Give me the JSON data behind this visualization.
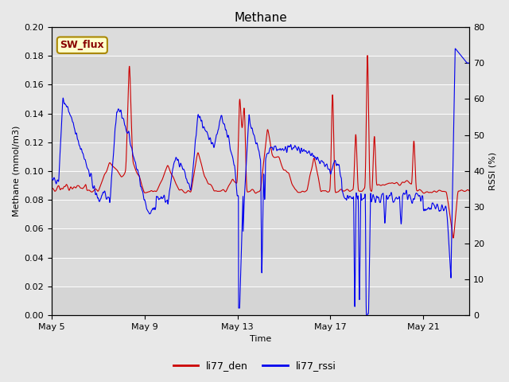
{
  "title": "Methane",
  "xlabel": "Time",
  "ylabel_left": "Methane (mmol/m3)",
  "ylabel_right": "RSSI (%)",
  "ylim_left": [
    0.0,
    0.2
  ],
  "ylim_right": [
    0,
    80
  ],
  "yticks_left": [
    0.0,
    0.02,
    0.04,
    0.06,
    0.08,
    0.1,
    0.12,
    0.14,
    0.16,
    0.18,
    0.2
  ],
  "yticks_right": [
    0,
    10,
    20,
    30,
    40,
    50,
    60,
    70,
    80
  ],
  "xtick_labels": [
    "May 5",
    "May 9",
    "May 13",
    "May 17",
    "May 21"
  ],
  "xtick_positions": [
    0,
    4,
    8,
    12,
    16
  ],
  "xlim": [
    0,
    18
  ],
  "color_red": "#cc0000",
  "color_blue": "#0000ee",
  "bg_color": "#e8e8e8",
  "plot_bg": "#dcdcdc",
  "legend_red": "li77_den",
  "legend_blue": "li77_rssi",
  "sw_flux_label": "SW_flux",
  "sw_flux_bg": "#ffffcc",
  "sw_flux_border": "#aa8800",
  "sw_flux_text_color": "#880000",
  "grid_color": "#ffffff",
  "linewidth": 0.8,
  "n_points": 2000,
  "fig_w": 6.4,
  "fig_h": 4.8,
  "dpi": 100
}
